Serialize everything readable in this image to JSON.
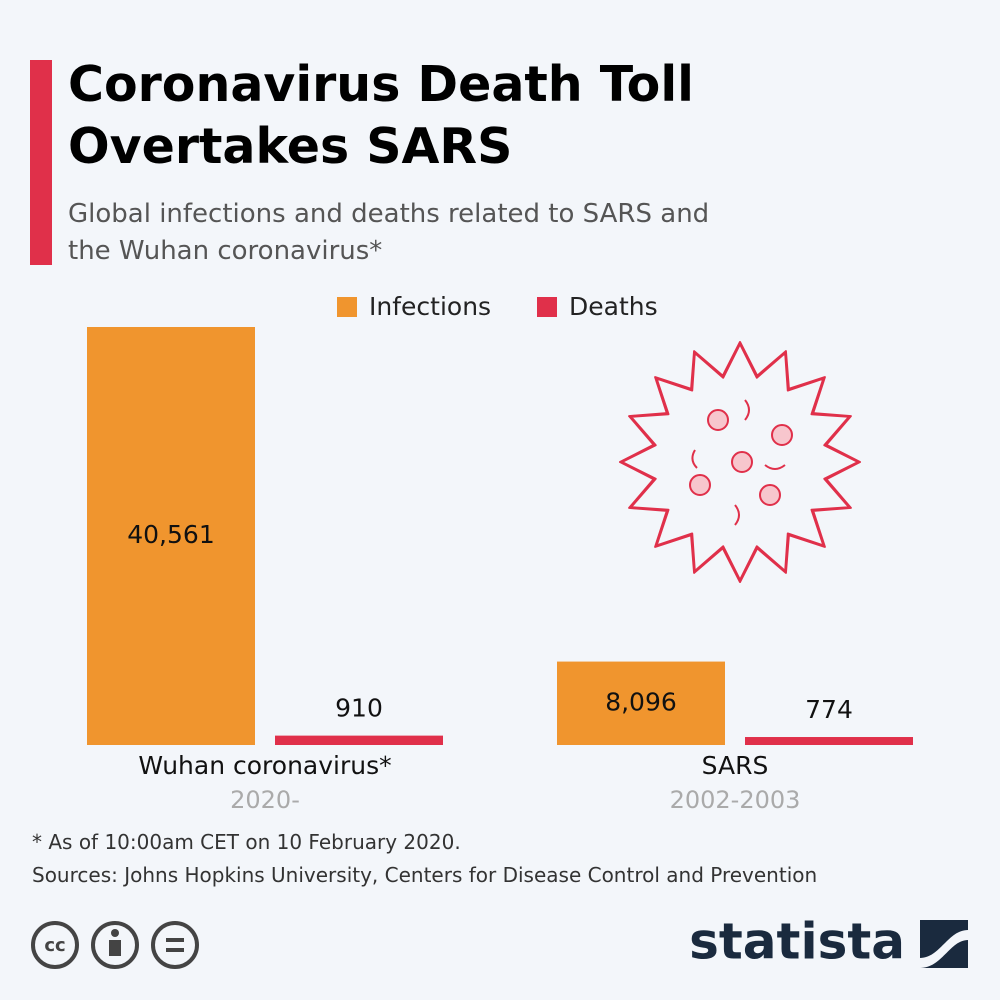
{
  "chart_data": {
    "type": "bar",
    "title": "Coronavirus Death Toll Overtakes SARS",
    "subtitle": "Global infections and deaths related to SARS and the Wuhan coronavirus*",
    "categories": [
      "Wuhan coronavirus*",
      "SARS"
    ],
    "category_periods": [
      "2020-",
      "2002-2003"
    ],
    "series": [
      {
        "name": "Infections",
        "color": "#f0952e",
        "values": [
          40561,
          8096
        ],
        "value_labels": [
          "40,561",
          "8,096"
        ]
      },
      {
        "name": "Deaths",
        "color": "#e0304a",
        "values": [
          910,
          774
        ],
        "value_labels": [
          "910",
          "774"
        ]
      }
    ],
    "footnote": "* As of 10:00am CET on 10 February 2020.",
    "source": "Sources: Johns Hopkins University, Centers for Disease Control and Prevention",
    "brand": "statista"
  }
}
